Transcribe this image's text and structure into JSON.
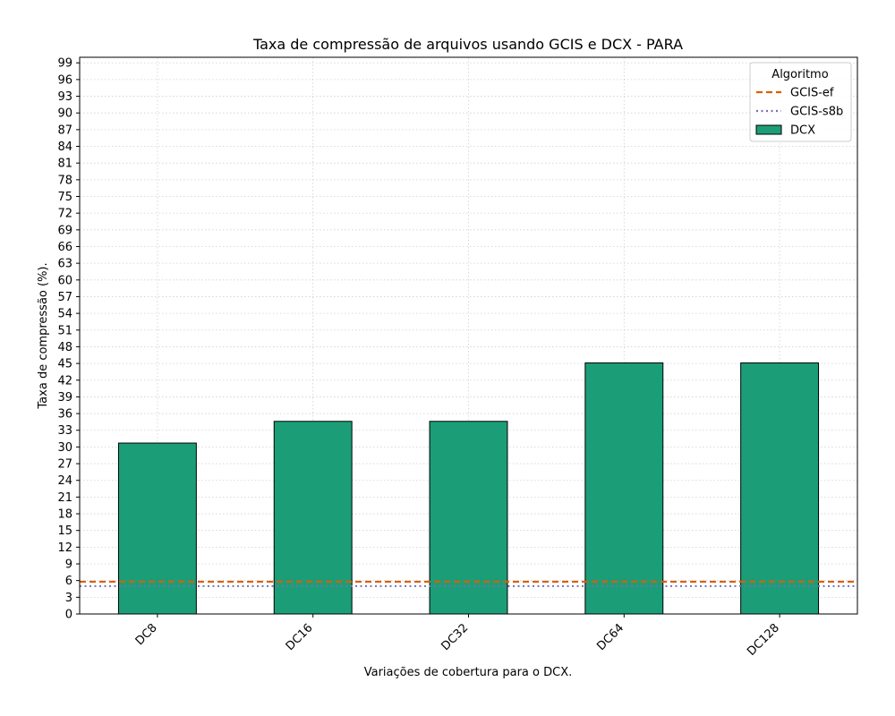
{
  "chart_data": {
    "type": "bar",
    "title": "Taxa de compressão de arquivos usando GCIS e DCX -  PARA",
    "xlabel": "Variações de cobertura para o DCX.",
    "ylabel": "Taxa de compressão (%).",
    "categories": [
      "DC8",
      "DC16",
      "DC32",
      "DC64",
      "DC128"
    ],
    "series": [
      {
        "name": "DCX",
        "values": [
          30.7,
          34.6,
          34.6,
          45.1,
          45.1
        ],
        "color": "#1b9e77"
      }
    ],
    "reference_lines": [
      {
        "name": "GCIS-ef",
        "value": 5.8,
        "color": "#d95f02",
        "style": "dashed"
      },
      {
        "name": "GCIS-s8b",
        "value": 5.0,
        "color": "#7570b3",
        "style": "dotted"
      }
    ],
    "ylim": [
      0,
      100
    ],
    "yticks": [
      0,
      3,
      6,
      9,
      12,
      15,
      18,
      21,
      24,
      27,
      30,
      33,
      36,
      39,
      42,
      45,
      48,
      51,
      54,
      57,
      60,
      63,
      66,
      69,
      72,
      75,
      78,
      81,
      84,
      87,
      90,
      93,
      96,
      99
    ],
    "grid": true,
    "legend": {
      "title": "Algoritmo",
      "placement": "top-right",
      "entries": [
        "GCIS-ef",
        "GCIS-s8b",
        "DCX"
      ]
    }
  }
}
